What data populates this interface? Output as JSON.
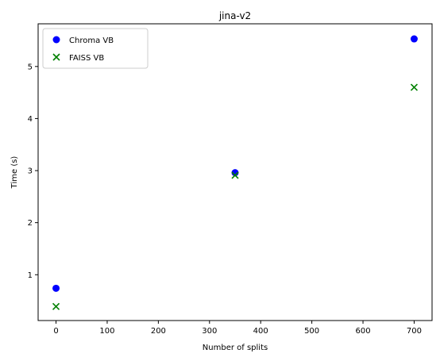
{
  "chart_data": {
    "type": "scatter",
    "title": "jina-v2",
    "xlabel": "Number of splits",
    "ylabel": "Time (s)",
    "xlim": [
      -35,
      735
    ],
    "ylim": [
      0.12,
      5.82
    ],
    "xticks": [
      0,
      100,
      200,
      300,
      400,
      500,
      600,
      700
    ],
    "yticks": [
      1,
      2,
      3,
      4,
      5
    ],
    "grid": false,
    "legend_position": "top-left",
    "series": [
      {
        "name": "Chroma VB",
        "marker": "circle",
        "color": "#0000ff",
        "points": [
          [
            0,
            0.74
          ],
          [
            350,
            2.96
          ],
          [
            700,
            5.53
          ]
        ]
      },
      {
        "name": "FAISS VB",
        "marker": "x",
        "color": "#008000",
        "points": [
          [
            0,
            0.39
          ],
          [
            350,
            2.91
          ],
          [
            700,
            4.6
          ]
        ]
      }
    ]
  }
}
